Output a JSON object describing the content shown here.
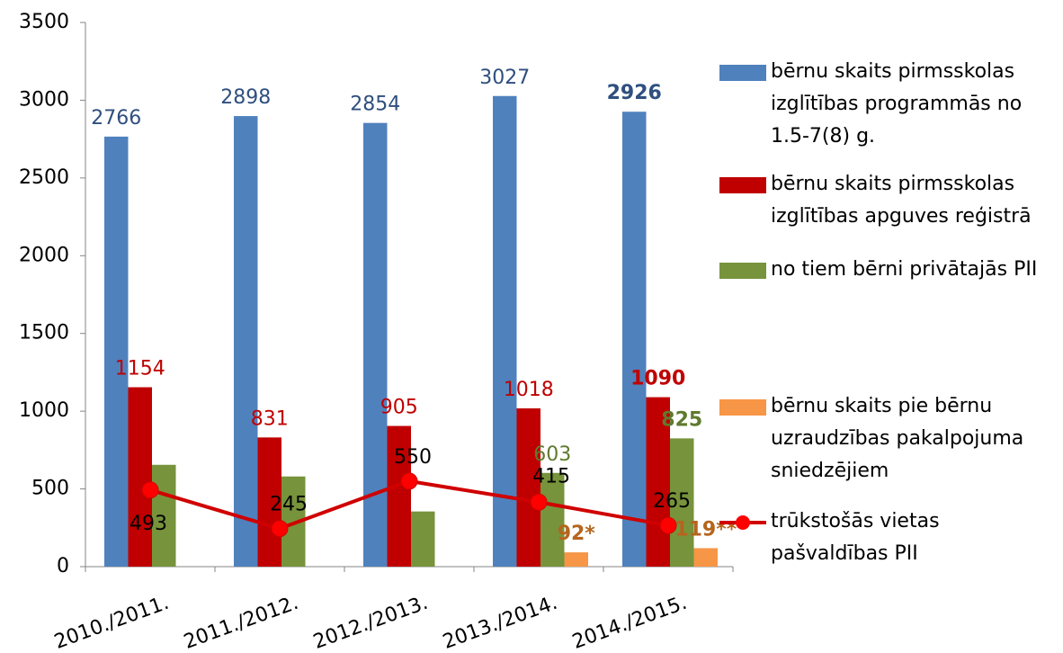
{
  "chart_data": {
    "type": "bar",
    "categories": [
      "2010./2011.",
      "2011./2012.",
      "2012./2013.",
      "2013./2014.",
      "2014./2015."
    ],
    "series": [
      {
        "name": "bērnu skaits pirmsskolas izglītības programmās no 1.5-7(8) g.",
        "type": "bar",
        "color": "#4f81bd",
        "label_color": "#2f4f7f",
        "values": [
          2766,
          2898,
          2854,
          3027,
          2926
        ]
      },
      {
        "name": "bērnu skaits pirmsskolas izglītības apguves reģistrā",
        "type": "bar",
        "color": "#c00000",
        "label_color": "#c00000",
        "values": [
          1154,
          831,
          905,
          1018,
          1090
        ]
      },
      {
        "name": "no tiem bērni privātajās PII",
        "type": "bar",
        "color": "#77933c",
        "label_color": "#5f7a2e",
        "values": [
          655,
          580,
          355,
          603,
          825
        ],
        "value_labels": [
          null,
          null,
          null,
          "603",
          "825"
        ]
      },
      {
        "name": "bērnu skaits pie bērnu uzraudzības pakalpojuma sniedzējiem",
        "type": "bar",
        "color": "#f79646",
        "label_color": "#b5651d",
        "values": [
          null,
          null,
          null,
          92,
          119
        ],
        "value_labels": [
          null,
          null,
          null,
          "92*",
          "119**"
        ]
      },
      {
        "name": "trūkstošās vietas pašvaldības PII",
        "type": "line",
        "color": "#d00000",
        "marker_color": "#ff0000",
        "label_color": "#000000",
        "values": [
          493,
          245,
          550,
          415,
          265
        ]
      }
    ],
    "ylim": [
      0,
      3500
    ],
    "yticks": [
      0,
      500,
      1000,
      1500,
      2000,
      2500,
      3000,
      3500
    ],
    "grid": false,
    "legend": "right"
  }
}
